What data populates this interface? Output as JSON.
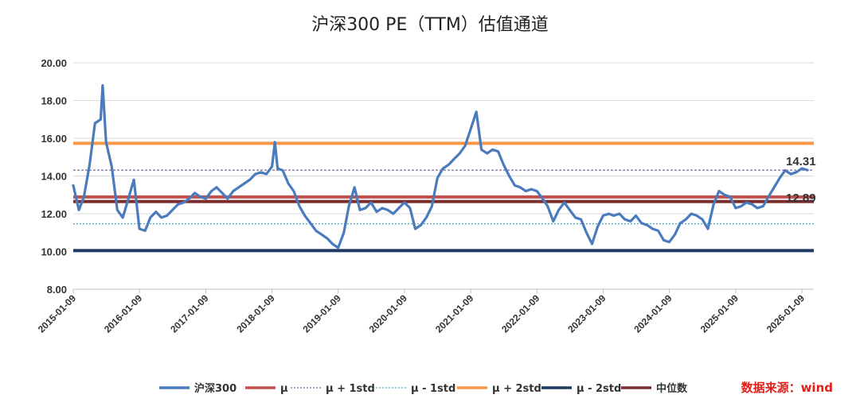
{
  "chart_data": {
    "type": "line",
    "title": "沪深300 PE（TTM）估值通道",
    "ylim": [
      8,
      20
    ],
    "yticks": [
      "20.00",
      "18.00",
      "16.00",
      "14.00",
      "12.00",
      "10.00",
      "8.00"
    ],
    "xticks": [
      "2015-01-09",
      "2016-01-09",
      "2017-01-09",
      "2018-01-09",
      "2019-01-09",
      "2020-01-09",
      "2021-01-09",
      "2022-01-09",
      "2023-01-09",
      "2024-01-09",
      "2025-01-09",
      "2026-01-09"
    ],
    "grid": true,
    "legend_position": "bottom",
    "series": [
      {
        "name": "沪深300",
        "color": "#4a7bbd",
        "x": [
          "2015-01-09",
          "2015-02-09",
          "2015-03-09",
          "2015-04-09",
          "2015-05-09",
          "2015-06-09",
          "2015-06-20",
          "2015-07-09",
          "2015-08-09",
          "2015-09-09",
          "2015-10-09",
          "2015-11-09",
          "2015-12-09",
          "2016-01-09",
          "2016-02-09",
          "2016-03-09",
          "2016-04-09",
          "2016-05-09",
          "2016-06-09",
          "2016-07-09",
          "2016-08-09",
          "2016-09-09",
          "2016-10-09",
          "2016-11-09",
          "2016-12-09",
          "2017-01-09",
          "2017-02-09",
          "2017-03-09",
          "2017-04-09",
          "2017-05-09",
          "2017-06-09",
          "2017-07-09",
          "2017-08-09",
          "2017-09-09",
          "2017-10-09",
          "2017-11-09",
          "2017-12-09",
          "2018-01-09",
          "2018-01-25",
          "2018-02-09",
          "2018-03-09",
          "2018-04-09",
          "2018-05-09",
          "2018-06-09",
          "2018-07-09",
          "2018-08-09",
          "2018-09-09",
          "2018-10-09",
          "2018-11-09",
          "2018-12-09",
          "2019-01-09",
          "2019-02-09",
          "2019-03-09",
          "2019-04-09",
          "2019-05-09",
          "2019-06-09",
          "2019-07-09",
          "2019-08-09",
          "2019-09-09",
          "2019-10-09",
          "2019-11-09",
          "2019-12-09",
          "2020-01-09",
          "2020-02-09",
          "2020-03-09",
          "2020-04-09",
          "2020-05-09",
          "2020-06-09",
          "2020-07-09",
          "2020-08-09",
          "2020-09-09",
          "2020-10-09",
          "2020-11-09",
          "2020-12-09",
          "2021-01-09",
          "2021-02-09",
          "2021-03-09",
          "2021-04-09",
          "2021-05-09",
          "2021-06-09",
          "2021-07-09",
          "2021-08-09",
          "2021-09-09",
          "2021-10-09",
          "2021-11-09",
          "2021-12-09",
          "2022-01-09",
          "2022-02-09",
          "2022-03-09",
          "2022-04-09",
          "2022-05-09",
          "2022-06-09",
          "2022-07-09",
          "2022-08-09",
          "2022-09-09",
          "2022-10-09",
          "2022-11-09",
          "2022-12-09",
          "2023-01-09",
          "2023-02-09",
          "2023-03-09",
          "2023-04-09",
          "2023-05-09",
          "2023-06-09",
          "2023-07-09",
          "2023-08-09",
          "2023-09-09",
          "2023-10-09",
          "2023-11-09",
          "2023-12-09",
          "2024-01-09",
          "2024-02-09",
          "2024-03-09",
          "2024-04-09",
          "2024-05-09",
          "2024-06-09",
          "2024-07-09",
          "2024-08-09",
          "2024-09-09",
          "2024-10-09",
          "2024-11-09",
          "2024-12-09",
          "2025-01-09",
          "2025-02-09",
          "2025-03-09",
          "2025-04-09",
          "2025-05-09",
          "2025-06-09",
          "2025-07-09",
          "2025-08-09",
          "2025-09-09",
          "2025-10-09",
          "2025-11-09",
          "2025-12-09",
          "2026-01-09",
          "2026-02-09"
        ],
        "values": [
          13.5,
          12.2,
          12.9,
          14.6,
          16.8,
          17.0,
          18.8,
          15.8,
          14.5,
          12.2,
          11.8,
          12.8,
          13.8,
          11.2,
          11.1,
          11.8,
          12.1,
          11.8,
          11.9,
          12.2,
          12.5,
          12.6,
          12.8,
          13.1,
          12.9,
          12.8,
          13.2,
          13.4,
          13.1,
          12.8,
          13.2,
          13.4,
          13.6,
          13.8,
          14.1,
          14.2,
          14.1,
          14.5,
          15.8,
          14.4,
          14.3,
          13.6,
          13.2,
          12.4,
          11.9,
          11.5,
          11.1,
          10.9,
          10.7,
          10.4,
          10.2,
          11.0,
          12.4,
          13.4,
          12.2,
          12.3,
          12.6,
          12.1,
          12.3,
          12.2,
          12.0,
          12.3,
          12.6,
          12.3,
          11.2,
          11.4,
          11.8,
          12.4,
          13.9,
          14.4,
          14.6,
          14.9,
          15.2,
          15.6,
          16.5,
          17.4,
          15.4,
          15.2,
          15.4,
          15.3,
          14.6,
          14.0,
          13.5,
          13.4,
          13.2,
          13.3,
          13.2,
          12.8,
          12.4,
          11.6,
          12.2,
          12.6,
          12.2,
          11.8,
          11.7,
          11.0,
          10.4,
          11.3,
          11.9,
          12.0,
          11.9,
          12.0,
          11.7,
          11.6,
          11.9,
          11.5,
          11.4,
          11.2,
          11.1,
          10.6,
          10.5,
          10.9,
          11.5,
          11.7,
          12.0,
          11.9,
          11.7,
          11.2,
          12.5,
          13.2,
          13.0,
          12.9,
          12.3,
          12.4,
          12.6,
          12.5,
          12.3,
          12.4,
          12.9,
          13.4,
          13.9,
          14.3,
          14.1,
          14.2,
          14.4,
          14.31
        ]
      },
      {
        "name": "μ",
        "color": "#c0504d",
        "values": [
          12.89
        ]
      },
      {
        "name": "μ + 1std",
        "color": "#8064a2",
        "values": [
          14.31
        ]
      },
      {
        "name": "μ - 1std",
        "color": "#4bacc6",
        "values": [
          11.47
        ]
      },
      {
        "name": "μ + 2std",
        "color": "#f79646",
        "values": [
          15.73
        ]
      },
      {
        "name": "μ - 2std",
        "color": "#1f3864",
        "values": [
          10.05
        ]
      },
      {
        "name": "中位数",
        "color": "#7b2c2c",
        "values": [
          12.65
        ]
      }
    ],
    "annotations": [
      {
        "text": "14.31",
        "x": "2026-01-09",
        "y": 14.31
      },
      {
        "text": "12.89",
        "x": "2026-01-09",
        "y": 12.89
      }
    ]
  },
  "source_note": "数据来源：wind"
}
